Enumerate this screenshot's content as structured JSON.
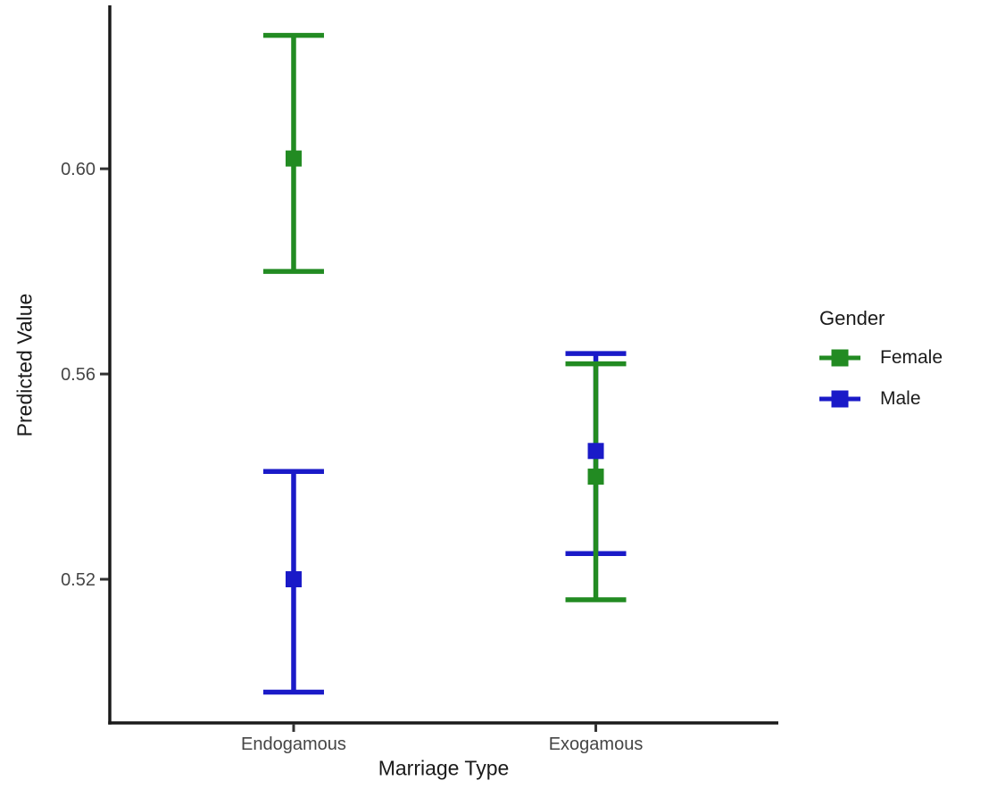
{
  "figure": {
    "background": "#FFFFFF"
  },
  "chart_data": {
    "type": "pointrange",
    "title": "",
    "xlabel": "Marriage Type",
    "ylabel": "Predicted Value",
    "categories": [
      "Endogamous",
      "Exogamous"
    ],
    "yticks": [
      0.6,
      0.56,
      0.52
    ],
    "ytick_labels": [
      "0.60",
      "0.56",
      "0.52"
    ],
    "ylim": [
      0.492,
      0.6315
    ],
    "grid": false,
    "axis_color": "#1A1A1A",
    "tick_label_color": "#454545",
    "legend": {
      "title": "Gender",
      "position": "right",
      "entries": [
        "Female",
        "Male"
      ]
    },
    "series": [
      {
        "name": "Female",
        "color": "#228B22",
        "points": [
          {
            "category": "Endogamous",
            "value": 0.602,
            "ci_low": 0.58,
            "ci_high": 0.626
          },
          {
            "category": "Exogamous",
            "value": 0.54,
            "ci_low": 0.516,
            "ci_high": 0.562
          }
        ]
      },
      {
        "name": "Male",
        "color": "#1A1AC8",
        "points": [
          {
            "category": "Endogamous",
            "value": 0.52,
            "ci_low": 0.498,
            "ci_high": 0.541
          },
          {
            "category": "Exogamous",
            "value": 0.545,
            "ci_low": 0.525,
            "ci_high": 0.564
          }
        ]
      }
    ]
  }
}
